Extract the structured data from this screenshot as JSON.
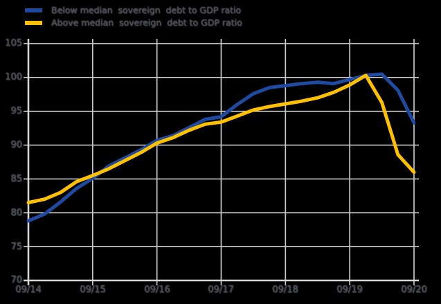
{
  "legend": {
    "items": [
      {
        "label": "Below median  sovereign  debt to GDP ratio",
        "color": "#1f4aa0"
      },
      {
        "label": "Above median  sovereign  debt to GDP ratio",
        "color": "#ffc000"
      }
    ]
  },
  "axes": {
    "y_tick_labels": [
      "105",
      "100",
      "95",
      "90",
      "85",
      "80",
      "75",
      "70"
    ],
    "x_tick_labels": [
      "09/14",
      "09/15",
      "09/16",
      "09/17",
      "09/18",
      "09/19",
      "09/20"
    ]
  },
  "chart_data": {
    "type": "line",
    "title": "",
    "xlabel": "",
    "ylabel": "",
    "x": [
      "09/14",
      "12/14",
      "03/15",
      "06/15",
      "09/15",
      "12/15",
      "03/16",
      "06/16",
      "09/16",
      "12/16",
      "03/17",
      "06/17",
      "09/17",
      "12/17",
      "03/18",
      "06/18",
      "09/18",
      "12/18",
      "03/19",
      "06/19",
      "09/19",
      "12/19",
      "03/20",
      "06/20",
      "09/20"
    ],
    "x_tick_labels": [
      "09/14",
      "09/15",
      "09/16",
      "09/17",
      "09/18",
      "09/19",
      "09/20"
    ],
    "series": [
      {
        "name": "Below median sovereign debt to GDP ratio",
        "color": "#1f4aa0",
        "values": [
          78.8,
          79.8,
          81.6,
          83.6,
          85.1,
          86.9,
          88.1,
          89.3,
          90.7,
          91.4,
          92.6,
          93.8,
          94.2,
          96.0,
          97.6,
          98.5,
          98.8,
          99.1,
          99.3,
          99.1,
          99.7,
          100.3,
          100.5,
          98.1,
          93.3
        ]
      },
      {
        "name": "Above median sovereign debt to GDP ratio",
        "color": "#ffc000",
        "values": [
          81.5,
          82.0,
          83.0,
          84.6,
          85.5,
          86.5,
          87.7,
          88.9,
          90.3,
          91.1,
          92.2,
          93.1,
          93.4,
          94.3,
          95.2,
          95.7,
          96.1,
          96.5,
          97.0,
          97.8,
          98.9,
          100.3,
          96.3,
          88.6,
          86.0
        ]
      }
    ],
    "ylim": [
      70,
      105
    ],
    "y_ticks": [
      70,
      75,
      80,
      85,
      90,
      95,
      100,
      105
    ],
    "grid": true,
    "grid_color": "#c7c7c7",
    "axis_color": "#d6d6d6",
    "background": "#000000",
    "legend_position": "top-left"
  }
}
